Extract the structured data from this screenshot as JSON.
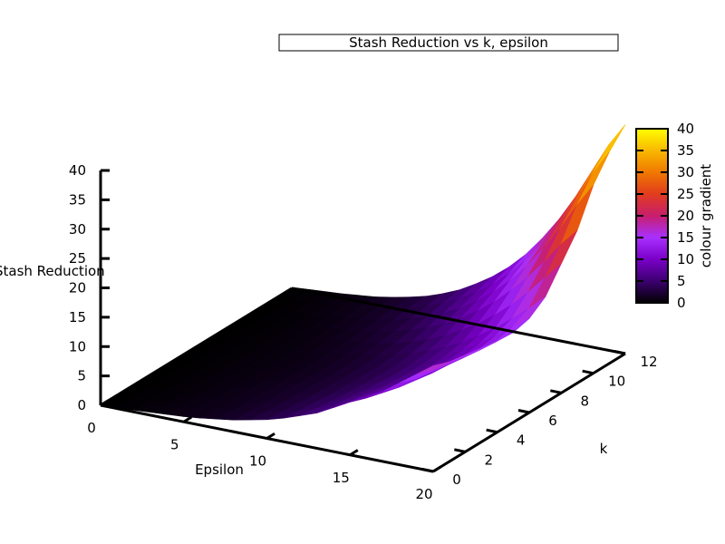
{
  "chart_data": {
    "type": "surface",
    "title": "Stash Reduction vs k, epsilon",
    "xlabel": "Epsilon",
    "ylabel": "k",
    "zlabel": "Stash Reduction",
    "xlim": [
      0,
      20
    ],
    "ylim": [
      0,
      12
    ],
    "zlim": [
      0,
      40
    ],
    "x_ticks": [
      "0",
      "5",
      "10",
      "15",
      "20"
    ],
    "y_ticks": [
      "0",
      "2",
      "4",
      "6",
      "8",
      "10",
      "12"
    ],
    "z_ticks": [
      "0",
      "5",
      "10",
      "15",
      "20",
      "25",
      "30",
      "35",
      "40"
    ],
    "colorbar": {
      "label": "colour gradient",
      "ticks": [
        "0",
        "5",
        "10",
        "15",
        "20",
        "25",
        "30",
        "35",
        "40"
      ],
      "range": [
        0,
        40
      ],
      "palette": [
        "#000000",
        "#3c0070",
        "#7a00c8",
        "#a830ff",
        "#c81e6e",
        "#e23c1e",
        "#f07800",
        "#f8b800",
        "#ffff00"
      ]
    },
    "surface_rows": [
      {
        "k": 0,
        "values": [
          0,
          0.1,
          0.3,
          0.5,
          0.7,
          0.9,
          1.2,
          1.6,
          2,
          2.6,
          3.2,
          4,
          5,
          6,
          7.5,
          9,
          10.5,
          12,
          14,
          16,
          18
        ]
      },
      {
        "k": 1,
        "values": [
          0,
          0.1,
          0.3,
          0.5,
          0.7,
          0.9,
          1.1,
          1.4,
          1.8,
          2.3,
          2.9,
          3.6,
          4.5,
          5.5,
          6.8,
          8,
          9.5,
          11,
          13,
          15,
          17
        ]
      },
      {
        "k": 2,
        "values": [
          0,
          0.1,
          0.2,
          0.4,
          0.6,
          0.8,
          1,
          1.3,
          1.7,
          2.1,
          2.7,
          3.4,
          4.2,
          5.2,
          6.4,
          7.6,
          9,
          10.5,
          12.5,
          14.5,
          16.5
        ]
      },
      {
        "k": 3,
        "values": [
          0,
          0.1,
          0.2,
          0.4,
          0.6,
          0.8,
          1,
          1.3,
          1.6,
          2,
          2.5,
          3.1,
          3.9,
          4.8,
          5.9,
          7.1,
          8.5,
          10,
          12,
          14,
          16
        ]
      },
      {
        "k": 4,
        "values": [
          0,
          0.1,
          0.2,
          0.4,
          0.5,
          0.7,
          0.9,
          1.2,
          1.5,
          1.9,
          2.4,
          3,
          3.7,
          4.6,
          5.7,
          6.9,
          8.3,
          9.8,
          11.6,
          13.5,
          15.5
        ]
      },
      {
        "k": 5,
        "values": [
          0,
          0.1,
          0.2,
          0.3,
          0.5,
          0.7,
          0.9,
          1.1,
          1.4,
          1.8,
          2.3,
          2.9,
          3.6,
          4.4,
          5.5,
          6.7,
          8.1,
          9.6,
          11.4,
          13.3,
          15.3
        ]
      },
      {
        "k": 6,
        "values": [
          0,
          0.1,
          0.2,
          0.3,
          0.5,
          0.6,
          0.8,
          1.1,
          1.4,
          1.8,
          2.3,
          2.9,
          3.6,
          4.5,
          5.6,
          6.9,
          8.4,
          10,
          12,
          14,
          16
        ]
      },
      {
        "k": 7,
        "values": [
          0,
          0.1,
          0.2,
          0.3,
          0.5,
          0.7,
          0.9,
          1.2,
          1.5,
          1.9,
          2.4,
          3.1,
          3.9,
          4.9,
          6.1,
          7.5,
          9.2,
          11,
          13.2,
          15.5,
          18
        ]
      },
      {
        "k": 8,
        "values": [
          0,
          0.1,
          0.2,
          0.4,
          0.5,
          0.7,
          1,
          1.3,
          1.7,
          2.2,
          2.8,
          3.6,
          4.6,
          5.8,
          7.3,
          9,
          11,
          13.3,
          16,
          19,
          22
        ]
      },
      {
        "k": 9,
        "values": [
          0,
          0.1,
          0.2,
          0.4,
          0.6,
          0.8,
          1.1,
          1.5,
          2,
          2.6,
          3.4,
          4.4,
          5.6,
          7.1,
          8.9,
          11,
          13.5,
          16.3,
          19.5,
          23,
          26
        ]
      },
      {
        "k": 10,
        "values": [
          0,
          0.1,
          0.3,
          0.5,
          0.7,
          1,
          1.3,
          1.8,
          2.4,
          3.1,
          4,
          5.2,
          6.6,
          8.4,
          10.5,
          13,
          16,
          19.5,
          23.5,
          28,
          32
        ]
      },
      {
        "k": 11,
        "values": [
          0,
          0.1,
          0.3,
          0.5,
          0.8,
          1.1,
          1.5,
          2,
          2.7,
          3.5,
          4.6,
          6,
          7.6,
          9.6,
          12,
          14.9,
          18.3,
          22.3,
          26.8,
          31.8,
          36
        ]
      },
      {
        "k": 12,
        "values": [
          0,
          0.2,
          0.4,
          0.6,
          0.9,
          1.2,
          1.7,
          2.3,
          3,
          4,
          5.2,
          6.8,
          8.6,
          10.8,
          13.5,
          16.8,
          20.6,
          25,
          30,
          35,
          39
        ]
      }
    ]
  }
}
